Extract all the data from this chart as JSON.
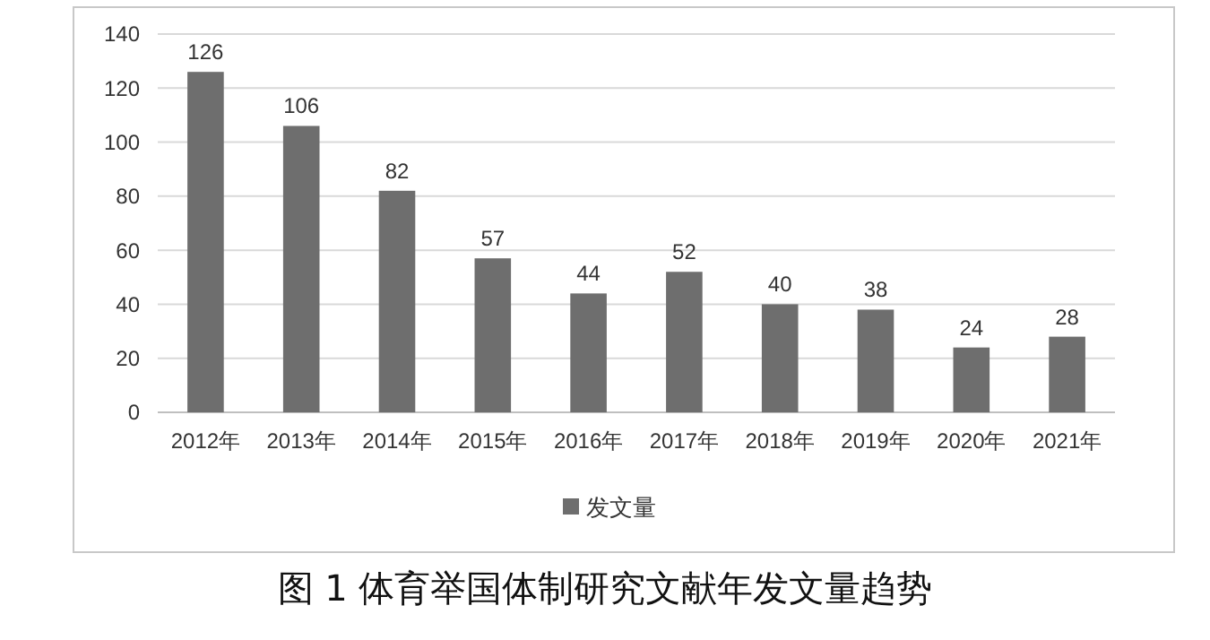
{
  "chart_data": {
    "type": "bar",
    "title": "图 1  体育举国体制研究文献年发文量趋势",
    "categories": [
      "2012年",
      "2013年",
      "2014年",
      "2015年",
      "2016年",
      "2017年",
      "2018年",
      "2019年",
      "2020年",
      "2021年"
    ],
    "series": [
      {
        "name": "发文量",
        "color": "#6e6e6e",
        "values": [
          126,
          106,
          82,
          57,
          44,
          52,
          40,
          38,
          24,
          28
        ]
      }
    ],
    "ylim": [
      0,
      140
    ],
    "yticks": [
      0,
      20,
      40,
      60,
      80,
      100,
      120,
      140
    ],
    "grid": "y",
    "legend": "bottom",
    "data_labels": true
  }
}
